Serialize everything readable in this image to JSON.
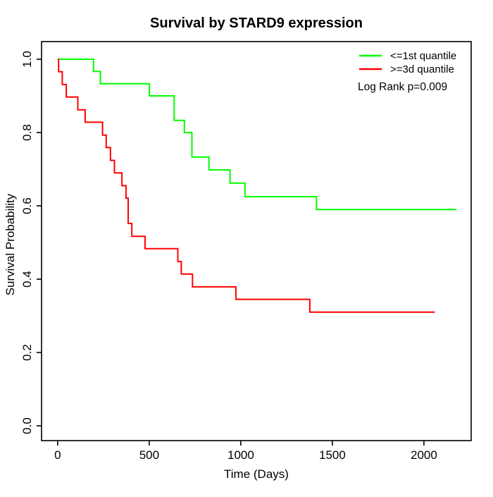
{
  "chart_data": {
    "type": "line",
    "subtype": "kaplan-meier-step",
    "title": "Survival by STARD9 expression",
    "xlabel": "Time (Days)",
    "ylabel": "Survival Probability",
    "xlim": [
      -88,
      2258
    ],
    "ylim": [
      -0.0404,
      1.0481
    ],
    "xticks": [
      0,
      500,
      1000,
      1500,
      2000
    ],
    "xtick_labels": [
      "0",
      "500",
      "1000",
      "1500",
      "2000"
    ],
    "yticks": [
      0.0,
      0.2,
      0.4,
      0.6,
      0.8,
      1.0
    ],
    "ytick_labels": [
      "0.0",
      "0.2",
      "0.4",
      "0.6",
      "0.8",
      "1.0"
    ],
    "grid": false,
    "legend_position": "top-right",
    "annotation": "Log Rank p=0.009",
    "series": [
      {
        "name": "<=1st quantile",
        "color": "#00ff00",
        "end_time": 2178,
        "steps": [
          [
            0,
            1.0
          ],
          [
            196,
            0.967
          ],
          [
            233,
            0.933
          ],
          [
            501,
            0.9
          ],
          [
            636,
            0.833
          ],
          [
            692,
            0.8
          ],
          [
            733,
            0.733
          ],
          [
            826,
            0.698
          ],
          [
            941,
            0.662
          ],
          [
            1023,
            0.625
          ],
          [
            1413,
            0.59
          ]
        ]
      },
      {
        "name": ">=3d quantile",
        "color": "#ff0000",
        "end_time": 2059,
        "steps": [
          [
            0,
            1.0
          ],
          [
            5,
            0.966
          ],
          [
            25,
            0.931
          ],
          [
            47,
            0.897
          ],
          [
            110,
            0.862
          ],
          [
            150,
            0.828
          ],
          [
            245,
            0.793
          ],
          [
            265,
            0.759
          ],
          [
            288,
            0.724
          ],
          [
            310,
            0.69
          ],
          [
            351,
            0.655
          ],
          [
            373,
            0.621
          ],
          [
            385,
            0.552
          ],
          [
            405,
            0.517
          ],
          [
            477,
            0.483
          ],
          [
            656,
            0.448
          ],
          [
            675,
            0.414
          ],
          [
            736,
            0.379
          ],
          [
            973,
            0.345
          ],
          [
            1377,
            0.31
          ]
        ]
      }
    ]
  }
}
